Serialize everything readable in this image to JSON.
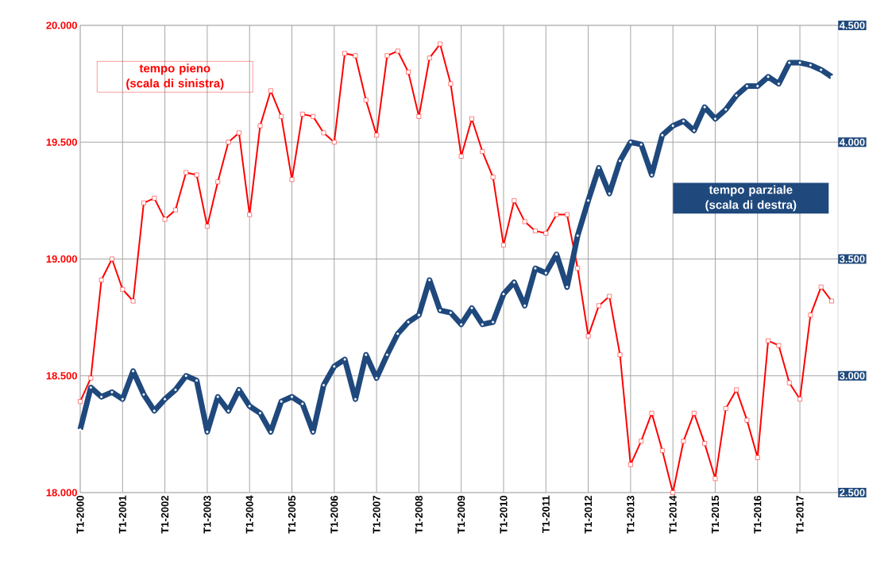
{
  "chart_data": {
    "type": "line",
    "categories": [
      "T1-2000",
      null,
      null,
      null,
      "T1-2001",
      null,
      null,
      null,
      "T1-2002",
      null,
      null,
      null,
      "T1-2003",
      null,
      null,
      null,
      "T1-2004",
      null,
      null,
      null,
      "T1-2005",
      null,
      null,
      null,
      "T1-2006",
      null,
      null,
      null,
      "T1-2007",
      null,
      null,
      null,
      "T1-2008",
      null,
      null,
      null,
      "T1-2009",
      null,
      null,
      null,
      "T1-2010",
      null,
      null,
      null,
      "T1-2011",
      null,
      null,
      null,
      "T1-2012",
      null,
      null,
      null,
      "T1-2013",
      null,
      null,
      null,
      "T1-2014",
      null,
      null,
      null,
      "T1-2015",
      null,
      null,
      null,
      "T1-2016",
      null,
      null,
      null,
      "T1-2017",
      null,
      null,
      null
    ],
    "series": [
      {
        "name": "tempo pieno (scala di sinistra)",
        "color": "#ff0000",
        "marker": "square",
        "values": [
          18390,
          18490,
          18910,
          19000,
          18870,
          18820,
          19240,
          19260,
          19170,
          19210,
          19370,
          19360,
          19140,
          19330,
          19500,
          19540,
          19190,
          19570,
          19720,
          19610,
          19340,
          19620,
          19610,
          19540,
          19500,
          19880,
          19870,
          19680,
          19530,
          19870,
          19890,
          19800,
          19610,
          19860,
          19920,
          19750,
          19440,
          19600,
          19460,
          19350,
          19060,
          19250,
          19160,
          19120,
          19110,
          19190,
          19190,
          18960,
          18670,
          18800,
          18840,
          18590,
          18120,
          18220,
          18340,
          18180,
          18000,
          18220,
          18340,
          18210,
          18060,
          18360,
          18440,
          18310,
          18150,
          18650,
          18630,
          18470,
          18400,
          18760,
          18880,
          18820
        ]
      },
      {
        "name": "tempo parziale (scala di destra)",
        "color": "#1f497d",
        "marker": "circle",
        "axis": "y2",
        "values": [
          2770,
          2950,
          2910,
          2930,
          2900,
          3020,
          2920,
          2850,
          2900,
          2940,
          3000,
          2980,
          2760,
          2910,
          2850,
          2940,
          2870,
          2840,
          2760,
          2890,
          2910,
          2880,
          2760,
          2960,
          3040,
          3070,
          2900,
          3090,
          2990,
          3090,
          3180,
          3230,
          3260,
          3410,
          3280,
          3270,
          3220,
          3290,
          3220,
          3230,
          3350,
          3400,
          3300,
          3460,
          3440,
          3520,
          3380,
          3600,
          3750,
          3890,
          3780,
          3920,
          4000,
          3990,
          3860,
          4030,
          4070,
          4090,
          4050,
          4150,
          4100,
          4140,
          4200,
          4240,
          4240,
          4280,
          4250,
          4340,
          4340,
          4330,
          4310,
          4280
        ]
      }
    ],
    "ylim": [
      18000,
      20000
    ],
    "yticks": [
      {
        "value": 18000,
        "label": "18.000"
      },
      {
        "value": 18500,
        "label": "18.500"
      },
      {
        "value": 19000,
        "label": "19.000"
      },
      {
        "value": 19500,
        "label": "19.500"
      },
      {
        "value": 20000,
        "label": "20.000"
      }
    ],
    "y2lim": [
      2500,
      4500
    ],
    "y2ticks": [
      {
        "value": 2500,
        "label": "2.500"
      },
      {
        "value": 3000,
        "label": "3.000"
      },
      {
        "value": 3500,
        "label": "3.500"
      },
      {
        "value": 4000,
        "label": "4.000"
      },
      {
        "value": 4500,
        "label": "4.500"
      }
    ],
    "grid": true
  }
}
